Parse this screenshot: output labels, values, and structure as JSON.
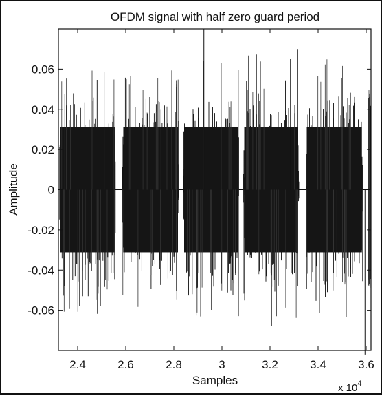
{
  "chart_data": {
    "type": "line",
    "title": "OFDM signal with half zero guard period",
    "xlabel": "Samples",
    "ylabel": "Amplitude",
    "x_scale_label": "x 10",
    "x_scale_exponent": "4",
    "xlim": [
      23200,
      36200
    ],
    "ylim": [
      -0.08,
      0.08
    ],
    "x_ticks": [
      24000,
      26000,
      28000,
      30000,
      32000,
      34000,
      36000
    ],
    "x_tick_labels": [
      "2.4",
      "2.6",
      "2.8",
      "3",
      "3.2",
      "3.4",
      "3.6"
    ],
    "y_ticks": [
      0.06,
      0.04,
      0.02,
      0,
      -0.02,
      -0.04,
      -0.06
    ],
    "y_tick_labels": [
      "0.06",
      "0.04",
      "0.02",
      "0",
      "-0.02",
      "-0.04",
      "-0.06"
    ],
    "grid": false,
    "series": [
      {
        "color": "#111111",
        "description_bursts": [
          {
            "x_start": 23250,
            "x_end": 25570,
            "typical_amplitude": 0.038,
            "peak_amplitude": 0.062
          },
          {
            "x_start": 25870,
            "x_end": 28200,
            "typical_amplitude": 0.038,
            "peak_amplitude": 0.06
          },
          {
            "x_start": 28400,
            "x_end": 30700,
            "typical_amplitude": 0.038,
            "peak_amplitude": 0.064
          },
          {
            "x_start": 30900,
            "x_end": 33200,
            "typical_amplitude": 0.038,
            "peak_amplitude": 0.068
          },
          {
            "x_start": 33500,
            "x_end": 35850,
            "typical_amplitude": 0.038,
            "peak_amplitude": 0.066
          },
          {
            "x_start": 36080,
            "x_end": 36200,
            "typical_amplitude": 0.038,
            "peak_amplitude": 0.05
          }
        ],
        "spikes": [
          {
            "x": 29250,
            "y": 0.08
          },
          {
            "x": 32850,
            "y": 0.065
          },
          {
            "x": 33150,
            "y": 0.07
          },
          {
            "x": 35950,
            "y": -0.082
          }
        ]
      }
    ]
  }
}
